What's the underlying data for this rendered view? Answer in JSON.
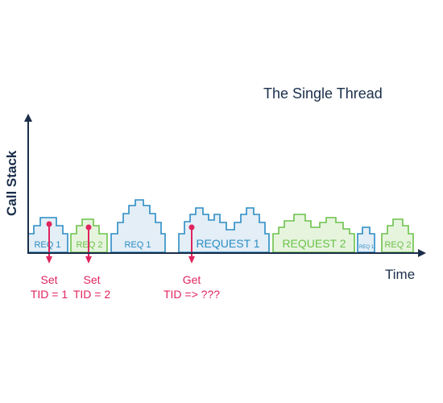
{
  "title": "The Single Thread",
  "y_axis_label": "Call Stack",
  "x_axis_label": "Time",
  "colors": {
    "blue_stroke": "#2b8cc4",
    "blue_fill": "#e3eef6",
    "green_stroke": "#6cc24a",
    "green_fill": "#e6f4de",
    "axis": "#1a2e4a",
    "marker": "#e0245e"
  },
  "blocks": [
    {
      "label": "REQ 1",
      "color": "blue"
    },
    {
      "label": "REQ 2",
      "color": "green"
    },
    {
      "label": "REQ 1",
      "color": "blue"
    },
    {
      "label": "REQUEST 1",
      "color": "blue"
    },
    {
      "label": "REQUEST 2",
      "color": "green"
    },
    {
      "label": "REQ 1",
      "color": "blue"
    },
    {
      "label": "REQ 2",
      "color": "green"
    }
  ],
  "annotations": [
    {
      "line1": "Set",
      "line2": "TID = 1"
    },
    {
      "line1": "Set",
      "line2": "TID = 2"
    },
    {
      "line1": "Get",
      "line2": "TID => ???"
    }
  ]
}
